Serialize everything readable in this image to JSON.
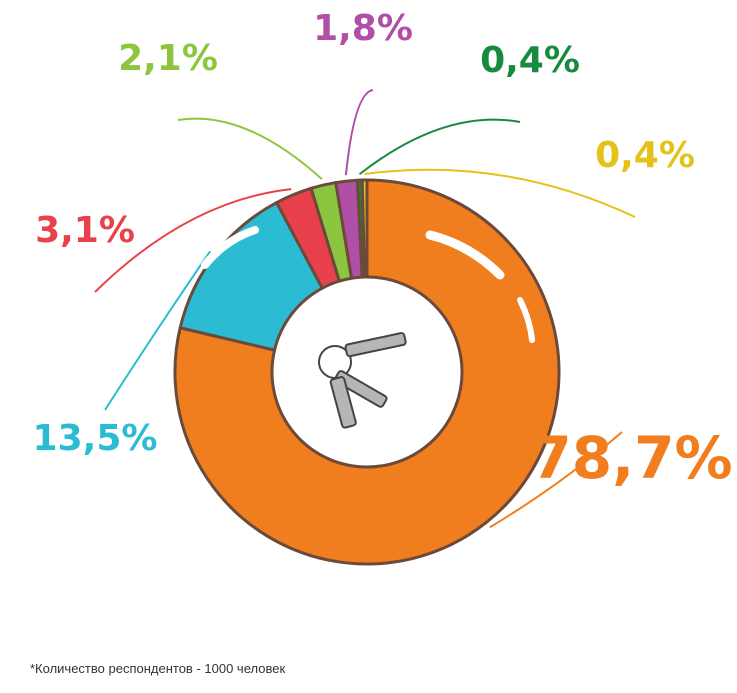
{
  "chart_data": {
    "type": "donut",
    "values": [
      78.7,
      13.5,
      3.1,
      2.1,
      1.8,
      0.4,
      0.4
    ],
    "value_labels": [
      "78,7%",
      "13,5%",
      "3,1%",
      "2,1%",
      "1,8%",
      "0,4%",
      "0,4%"
    ],
    "colors": [
      "#f07d1e",
      "#2bbbd3",
      "#e8414b",
      "#8cc63f",
      "#b04fa6",
      "#178a3f",
      "#e3c21a"
    ],
    "note": "*Количество респондентов - 1000 человек"
  }
}
